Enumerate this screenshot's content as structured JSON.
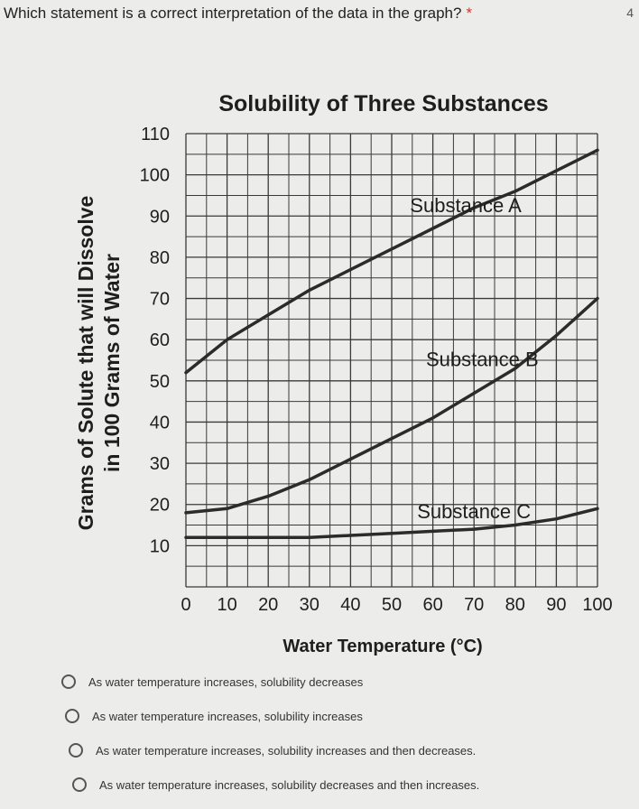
{
  "question": {
    "text": "Which statement is a correct interpretation of the data in the graph?",
    "required_marker": "*",
    "points": "4"
  },
  "chart_data": {
    "type": "line",
    "title": "Solubility of Three Substances",
    "xlabel": "Water Temperature (°C)",
    "ylabel_line1": "Grams of Solute that will Dissolve",
    "ylabel_line2": "in 100 Grams of Water",
    "xlim": [
      0,
      100
    ],
    "ylim": [
      0,
      110
    ],
    "x_ticks": [
      "0",
      "10",
      "20",
      "30",
      "40",
      "50",
      "60",
      "70",
      "80",
      "90",
      "100"
    ],
    "y_ticks": [
      "10",
      "20",
      "30",
      "40",
      "50",
      "60",
      "70",
      "80",
      "90",
      "100",
      "110"
    ],
    "grid": true,
    "series": [
      {
        "name": "Substance A",
        "x": [
          0,
          10,
          20,
          30,
          40,
          50,
          60,
          70,
          80,
          90,
          100
        ],
        "y": [
          52,
          60,
          66,
          72,
          77,
          82,
          87,
          92,
          96,
          101,
          106
        ]
      },
      {
        "name": "Substance B",
        "x": [
          0,
          10,
          20,
          30,
          40,
          50,
          60,
          70,
          80,
          90,
          100
        ],
        "y": [
          18,
          19,
          22,
          26,
          31,
          36,
          41,
          47,
          53,
          61,
          70
        ]
      },
      {
        "name": "Substance C",
        "x": [
          0,
          10,
          20,
          30,
          40,
          50,
          60,
          70,
          80,
          90,
          100
        ],
        "y": [
          12,
          12,
          12,
          12,
          12.5,
          13,
          13.5,
          14,
          15,
          16.5,
          19
        ]
      }
    ],
    "line_color": "#2b2b2b"
  },
  "options": [
    "As water temperature increases, solubility decreases",
    "As water temperature increases, solubility increases",
    "As water temperature increases, solubility increases and then decreases.",
    "As water temperature increases, solubility decreases and then increases."
  ]
}
